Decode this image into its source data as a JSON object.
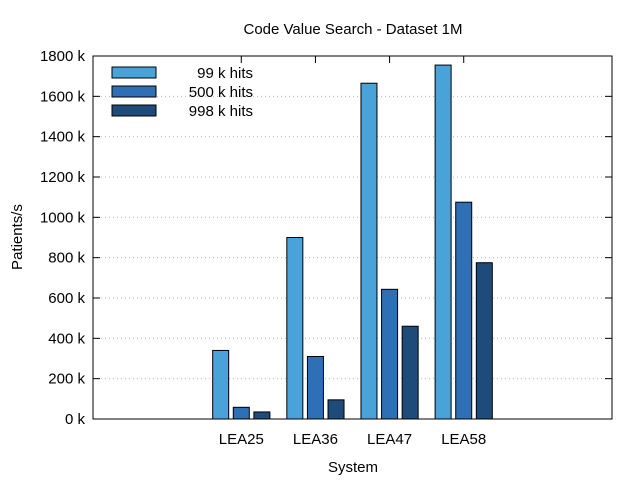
{
  "chart_data": {
    "type": "bar",
    "title": "Code Value Search - Dataset 1M",
    "xlabel": "System",
    "ylabel": "Patients/s",
    "ylim": [
      0,
      1800
    ],
    "yticks": [
      0,
      200,
      400,
      600,
      800,
      1000,
      1200,
      1400,
      1600,
      1800
    ],
    "ytick_labels": [
      "0 k",
      "200 k",
      "400 k",
      "600 k",
      "800 k",
      "1000 k",
      "1200 k",
      "1400 k",
      "1600 k",
      "1800 k"
    ],
    "categories": [
      "LEA25",
      "LEA36",
      "LEA47",
      "LEA58"
    ],
    "series": [
      {
        "name": "99 k hits",
        "color": "#4aa3d8",
        "values": [
          340,
          900,
          1665,
          1755
        ]
      },
      {
        "name": "500 k hits",
        "color": "#2e6fb5",
        "values": [
          58,
          310,
          643,
          1075
        ]
      },
      {
        "name": "998 k hits",
        "color": "#1f4b7a",
        "values": [
          35,
          95,
          460,
          775
        ]
      }
    ],
    "grid": "horizontal-dotted",
    "legend": "top-left"
  }
}
